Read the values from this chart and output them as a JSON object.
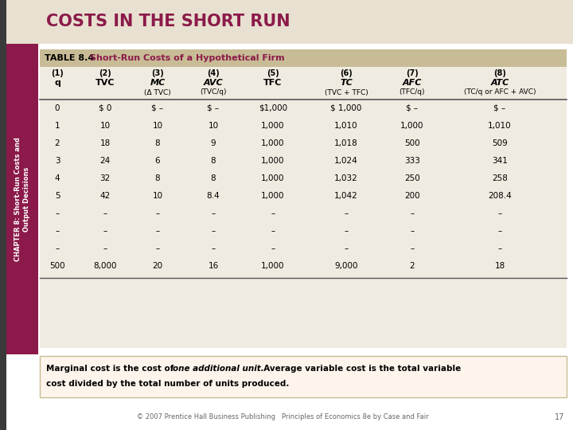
{
  "title": "COSTS IN THE SHORT RUN",
  "title_color": "#8B1A4A",
  "title_bg": "#E8E0D0",
  "table_title": "TABLE 8.4",
  "table_subtitle": "Short-Run Costs of a Hypothetical Firm",
  "table_subtitle_color": "#8B1A4A",
  "table_header_bg": "#C8BC96",
  "table_row_bg": "#F0EBE0",
  "col_num_labels": [
    "(1)",
    "(2)",
    "(3)",
    "(4)",
    "(5)",
    "(6)",
    "(7)",
    "(8)"
  ],
  "col_main_labels": [
    "q",
    "TVC",
    "MC",
    "AVC",
    "TFC",
    "TC",
    "AFC",
    "ATC"
  ],
  "col_main_italic": [
    false,
    false,
    true,
    true,
    false,
    true,
    true,
    true
  ],
  "col_sub_labels": [
    "",
    "",
    "(Δ TVC)",
    "(TVC/q)",
    "",
    "(TVC + TFC)",
    "(TFC/q)",
    "(TC/q or AFC + AVC)"
  ],
  "data_rows": [
    [
      "0",
      "$ 0",
      "$ –",
      "$ –",
      "$1,000",
      "$ 1,000",
      "$ –",
      "$ –"
    ],
    [
      "1",
      "10",
      "10",
      "10",
      "1,000",
      "1,010",
      "1,000",
      "1,010"
    ],
    [
      "2",
      "18",
      "8",
      "9",
      "1,000",
      "1,018",
      "500",
      "509"
    ],
    [
      "3",
      "24",
      "6",
      "8",
      "1,000",
      "1,024",
      "333",
      "341"
    ],
    [
      "4",
      "32",
      "8",
      "8",
      "1,000",
      "1,032",
      "250",
      "258"
    ],
    [
      "5",
      "42",
      "10",
      "8.4",
      "1,000",
      "1,042",
      "200",
      "208.4"
    ],
    [
      "–",
      "–",
      "–",
      "–",
      "–",
      "–",
      "–",
      "–"
    ],
    [
      "–",
      "–",
      "–",
      "–",
      "–",
      "–",
      "–",
      "–"
    ],
    [
      "–",
      "–",
      "–",
      "–",
      "–",
      "–",
      "–",
      "–"
    ],
    [
      "500",
      "8,000",
      "20",
      "16",
      "1,000",
      "9,000",
      "2",
      "18"
    ]
  ],
  "footnote_bg": "#FDF5EC",
  "footnote_border": "#C8BC96",
  "footer_text": "© 2007 Prentice Hall Business Publishing   Principles of Economics 8e by Case and Fair",
  "footer_page": "17",
  "sidebar_text_line1": "CHAPTER 8: Short-Run Costs and",
  "sidebar_text_line2": "Output Decisions",
  "sidebar_bg": "#8B1A4A",
  "sidebar_text_color": "#FFFFFF",
  "page_bg": "#FFFFFF",
  "left_bar_color": "#3A3A3A"
}
